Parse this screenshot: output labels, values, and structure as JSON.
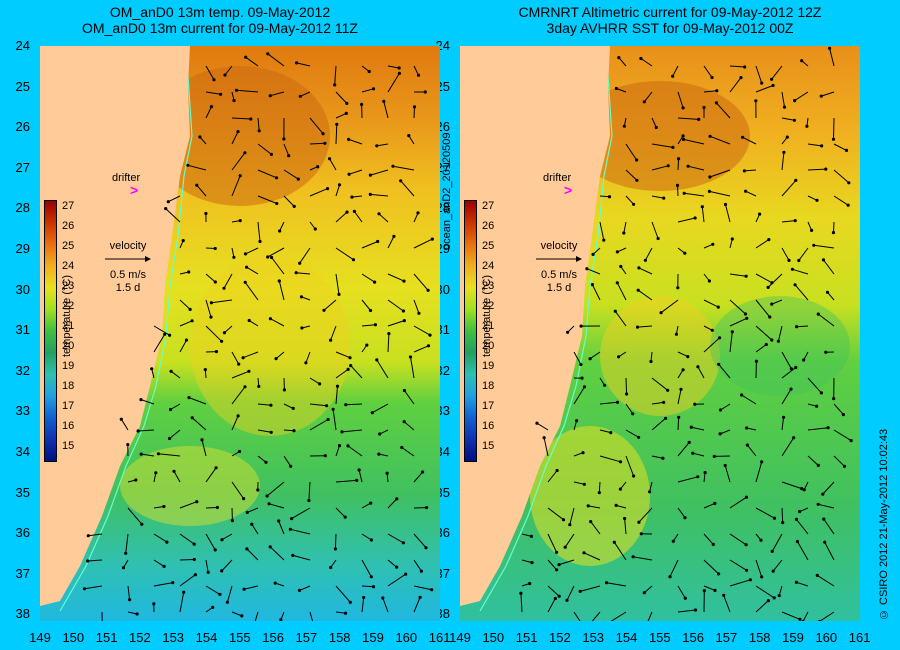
{
  "left_title": "OM_anD0 13m temp. 09-May-2012\nOM_anD0 13m current for 09-May-2012 11Z",
  "right_title": "CMRNRT Altimetric current for 09-May-2012 12Z\n3day AVHRR SST for 09-May-2012 00Z",
  "side_label": "ocean_anD2_20120509",
  "copyright": "© CSIRO 2012   21-May-2012 10:02:43",
  "lat_ticks": [
    "24",
    "25",
    "26",
    "27",
    "28",
    "29",
    "30",
    "31",
    "32",
    "33",
    "34",
    "35",
    "36",
    "37",
    "38"
  ],
  "lon_ticks": [
    "149",
    "150",
    "151",
    "152",
    "153",
    "154",
    "155",
    "156",
    "157",
    "158",
    "159",
    "160",
    "161"
  ],
  "colorbar": {
    "ticks": [
      "27",
      "26",
      "25",
      "24",
      "23",
      "22",
      "21",
      "20",
      "19",
      "18",
      "17",
      "16",
      "15"
    ],
    "unit": "temperature (°C)"
  },
  "drifter_label": "drifter",
  "velocity": {
    "label": "velocity",
    "speed": "0.5 m/s",
    "duration": "1.5 d"
  },
  "colors": {
    "background": "#00ccff",
    "land": "#ffcc99",
    "drifter": "#ff00ff",
    "coast_line": "#66ffcc"
  }
}
